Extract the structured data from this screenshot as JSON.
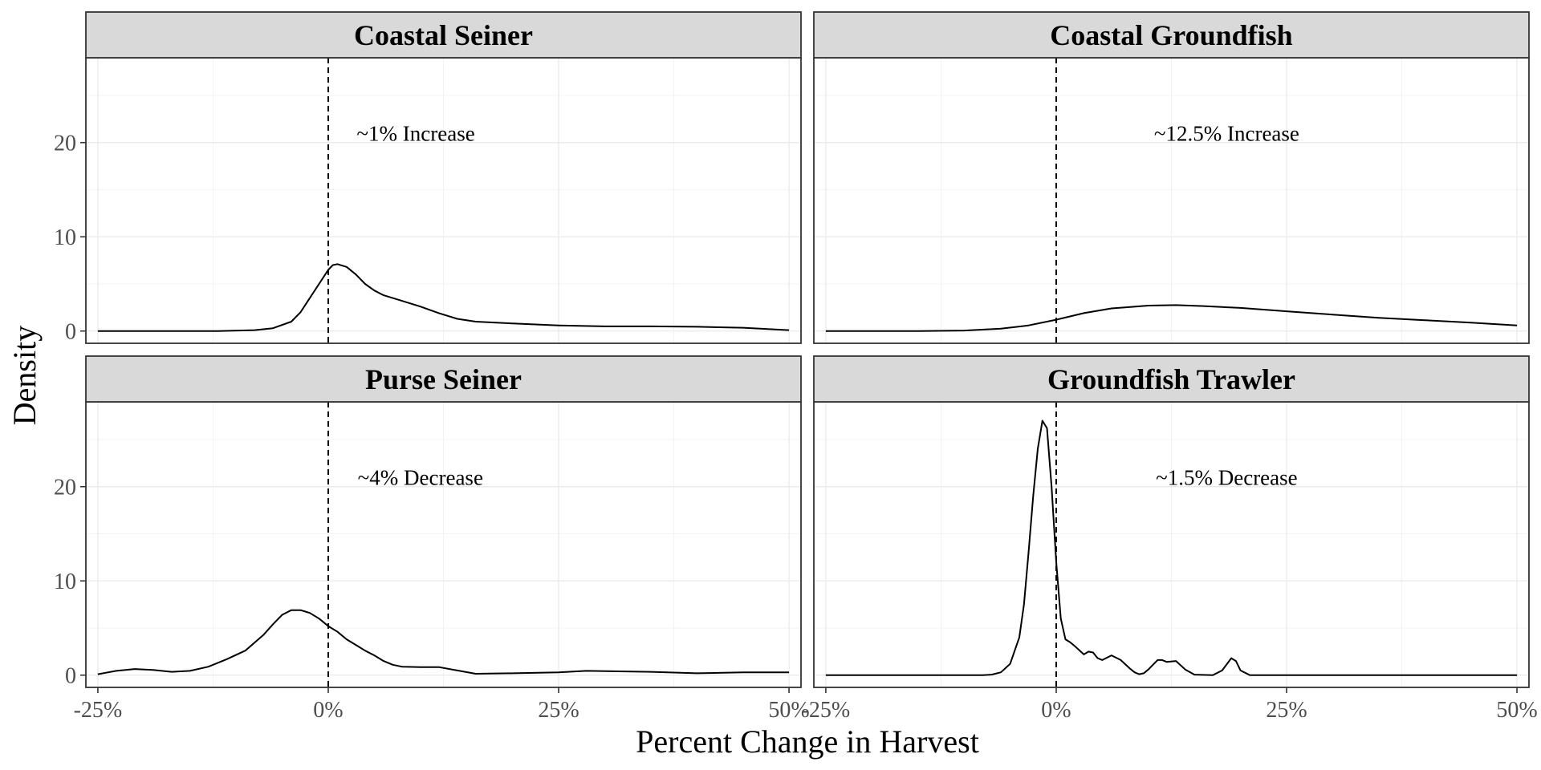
{
  "chart_data": {
    "type": "area",
    "layout": "facet 2x2, shared axes",
    "xlabel": "Percent Change in Harvest",
    "ylabel": "Density",
    "xlim": [
      -26.3,
      51.3
    ],
    "ylim": [
      -1.3,
      29
    ],
    "x_ticks": [
      -25,
      0,
      25,
      50
    ],
    "x_tick_labels": [
      "-25%",
      "0%",
      "25%",
      "50%"
    ],
    "y_ticks": [
      0,
      10,
      20
    ],
    "y_tick_labels": [
      "0",
      "10",
      "20"
    ],
    "grid": true,
    "reference_line": {
      "x": 0,
      "style": "dashed"
    },
    "colors": {
      "line": "#000000",
      "strip_fill": "#d9d9d9",
      "panel_border": "#333333",
      "grid": "#ebebeb",
      "tick_text": "#4d4d4d"
    },
    "panels": [
      {
        "title": "Coastal Seiner",
        "annotation": "~1% Increase",
        "annotation_at": {
          "x": 9.5,
          "y": 20.2
        },
        "x": [
          -25,
          -18,
          -12,
          -8,
          -6,
          -4,
          -3,
          -2,
          -1,
          0,
          0.5,
          1,
          2,
          3,
          4,
          5,
          6,
          8,
          10,
          12,
          14,
          16,
          20,
          25,
          30,
          35,
          40,
          45,
          50
        ],
        "y": [
          0,
          0,
          0,
          0.1,
          0.3,
          1,
          2,
          3.5,
          5,
          6.5,
          7,
          7.1,
          6.8,
          6,
          5,
          4.3,
          3.8,
          3.2,
          2.6,
          1.9,
          1.3,
          1,
          0.8,
          0.6,
          0.5,
          0.5,
          0.45,
          0.35,
          0.1
        ]
      },
      {
        "title": "Coastal Groundfish",
        "annotation": "~12.5% Increase",
        "annotation_at": {
          "x": 18.5,
          "y": 20.2
        },
        "x": [
          -25,
          -15,
          -10,
          -6,
          -3,
          0,
          3,
          6,
          10,
          13,
          16,
          20,
          25,
          30,
          35,
          40,
          45,
          50
        ],
        "y": [
          0,
          0,
          0.05,
          0.25,
          0.6,
          1.2,
          1.9,
          2.4,
          2.7,
          2.75,
          2.65,
          2.45,
          2.1,
          1.75,
          1.4,
          1.15,
          0.9,
          0.6
        ]
      },
      {
        "title": "Purse Seiner",
        "annotation": "~4% Decrease",
        "annotation_at": {
          "x": 10,
          "y": 20.2
        },
        "x": [
          -25,
          -23,
          -21,
          -19,
          -17,
          -15,
          -13,
          -11,
          -9,
          -7,
          -6,
          -5,
          -4,
          -3,
          -2,
          -1,
          0,
          1,
          2,
          3,
          4,
          5,
          6,
          7,
          8,
          10,
          12,
          14,
          16,
          20,
          25,
          28,
          35,
          40,
          45,
          50
        ],
        "y": [
          0.1,
          0.45,
          0.65,
          0.55,
          0.35,
          0.45,
          0.9,
          1.7,
          2.6,
          4.3,
          5.4,
          6.4,
          6.9,
          6.9,
          6.6,
          6,
          5.2,
          4.6,
          3.8,
          3.2,
          2.6,
          2.1,
          1.5,
          1.1,
          0.9,
          0.85,
          0.85,
          0.5,
          0.15,
          0.2,
          0.3,
          0.45,
          0.35,
          0.2,
          0.3,
          0.3
        ]
      },
      {
        "title": "Groundfish Trawler",
        "annotation": "~1.5% Decrease",
        "annotation_at": {
          "x": 18.5,
          "y": 20.2
        },
        "x": [
          -25,
          -8,
          -7,
          -6,
          -5,
          -4,
          -3.5,
          -3,
          -2.5,
          -2,
          -1.5,
          -1,
          -0.5,
          0,
          0.5,
          1,
          1.5,
          2,
          3,
          3.5,
          4,
          4.5,
          5,
          6,
          7,
          8,
          8.5,
          9,
          9.5,
          10,
          11,
          11.5,
          12,
          13,
          14,
          15,
          17,
          18,
          19,
          19.5,
          20,
          21,
          22,
          30,
          40,
          50
        ],
        "y": [
          0,
          0,
          0.05,
          0.3,
          1.2,
          4,
          7.5,
          13,
          19,
          24,
          27,
          26.2,
          20,
          12,
          6,
          3.8,
          3.5,
          3.1,
          2.2,
          2.5,
          2.4,
          1.8,
          1.6,
          2.1,
          1.6,
          0.7,
          0.3,
          0.1,
          0.2,
          0.6,
          1.6,
          1.6,
          1.4,
          1.5,
          0.6,
          0.05,
          0,
          0.5,
          1.8,
          1.5,
          0.5,
          0,
          0,
          0,
          0,
          0
        ]
      }
    ]
  }
}
